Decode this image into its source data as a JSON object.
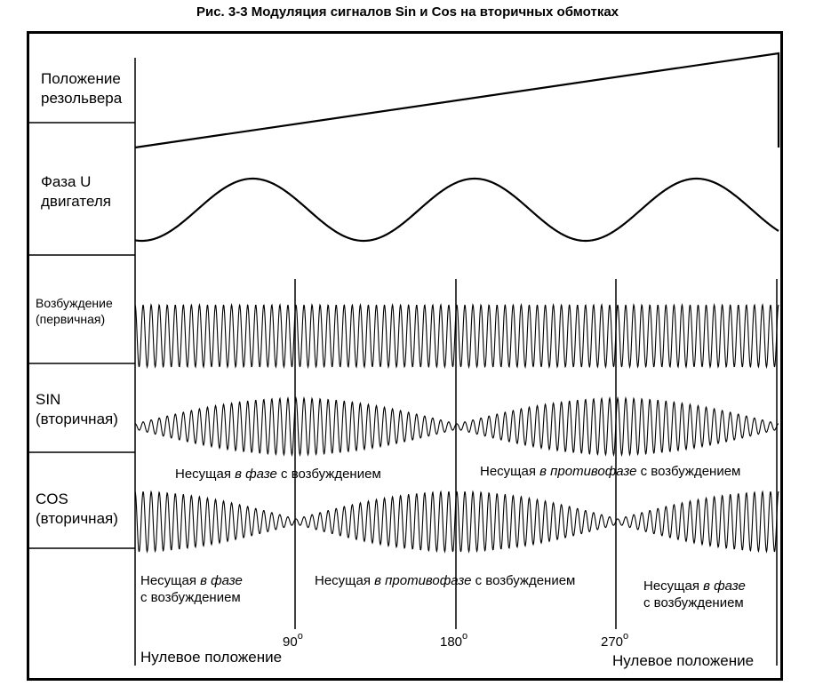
{
  "caption": "Рис. 3-3  Модуляция сигналов Sin и Cos на вторичных обмотках",
  "rows": {
    "position": [
      "Положение",
      "резольвера"
    ],
    "phase": [
      "Фаза U",
      "двигателя"
    ],
    "excitation": [
      "Возбуждение",
      "(первичная)"
    ],
    "sin": [
      "SIN",
      "(вторичная)"
    ],
    "cos": [
      "COS",
      "(вторичная)"
    ]
  },
  "notes": {
    "sin_left": {
      "a": "Несущая ",
      "b": "в фазе",
      "c": " с возбуждением"
    },
    "sin_right": {
      "a": "Несущая ",
      "b": "в противофазе",
      "c": " с возбуждением"
    },
    "cos_left": {
      "a": "Несущая ",
      "b": "в фазе",
      "c": "с возбуждением"
    },
    "cos_mid": {
      "a": "Несущая ",
      "b": "в противофазе",
      "c": " с возбуждением"
    },
    "cos_right": {
      "a": "Несущая ",
      "b": "в фазе",
      "c": "с возбуждением"
    }
  },
  "angles": {
    "a90": "90",
    "a180": "180",
    "a270": "270",
    "degree": "o"
  },
  "zero_left": "Нулевое положение",
  "zero_right": "Нулевое положение"
}
